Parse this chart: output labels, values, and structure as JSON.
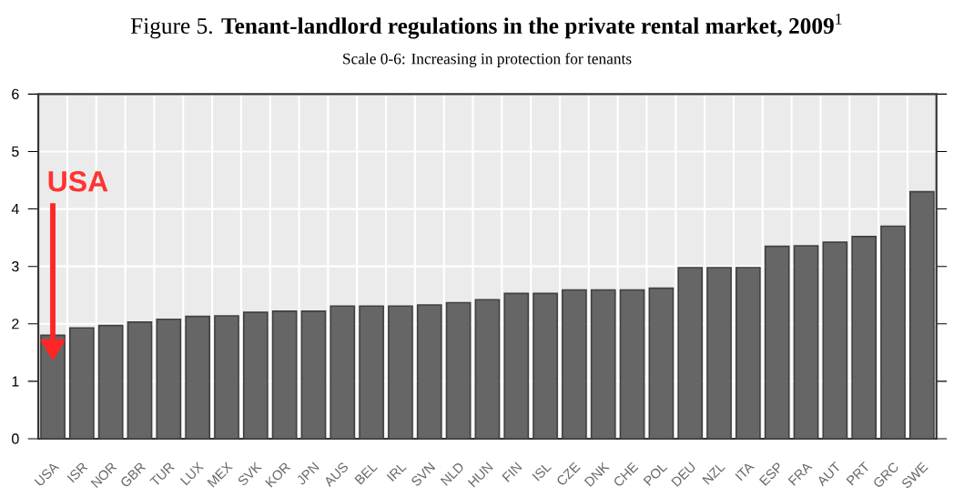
{
  "chart_data": {
    "type": "bar",
    "title": "Figure 5.  **Tenant-landlord regulations in the private rental market, 2009**$^{1}$",
    "subtitle": "Scale 0-6: Increasing in protection for tenants",
    "categories": [
      "USA",
      "ISR",
      "NOR",
      "GBR",
      "TUR",
      "LUX",
      "MEX",
      "SVK",
      "KOR",
      "JPN",
      "AUS",
      "BEL",
      "IRL",
      "SVN",
      "NLD",
      "HUN",
      "FIN",
      "ISL",
      "CZE",
      "DNK",
      "CHE",
      "POL",
      "DEU",
      "NZL",
      "ITA",
      "ESP",
      "FRA",
      "AUT",
      "PRT",
      "GRC",
      "SWE"
    ],
    "values": [
      1.8,
      1.93,
      1.97,
      2.03,
      2.08,
      2.13,
      2.14,
      2.2,
      2.22,
      2.22,
      2.31,
      2.31,
      2.31,
      2.33,
      2.37,
      2.42,
      2.53,
      2.53,
      2.59,
      2.59,
      2.59,
      2.62,
      2.98,
      2.98,
      2.98,
      3.35,
      3.36,
      3.42,
      3.52,
      3.7,
      4.3
    ],
    "color": "#666666",
    "ylim": [
      0,
      6
    ],
    "yticks": [
      0,
      1,
      2,
      3,
      4,
      5,
      6
    ],
    "grid": true,
    "annotations": [
      {
        "text": "USA",
        "x": "USA",
        "y": 1.8
      }
    ]
  }
}
